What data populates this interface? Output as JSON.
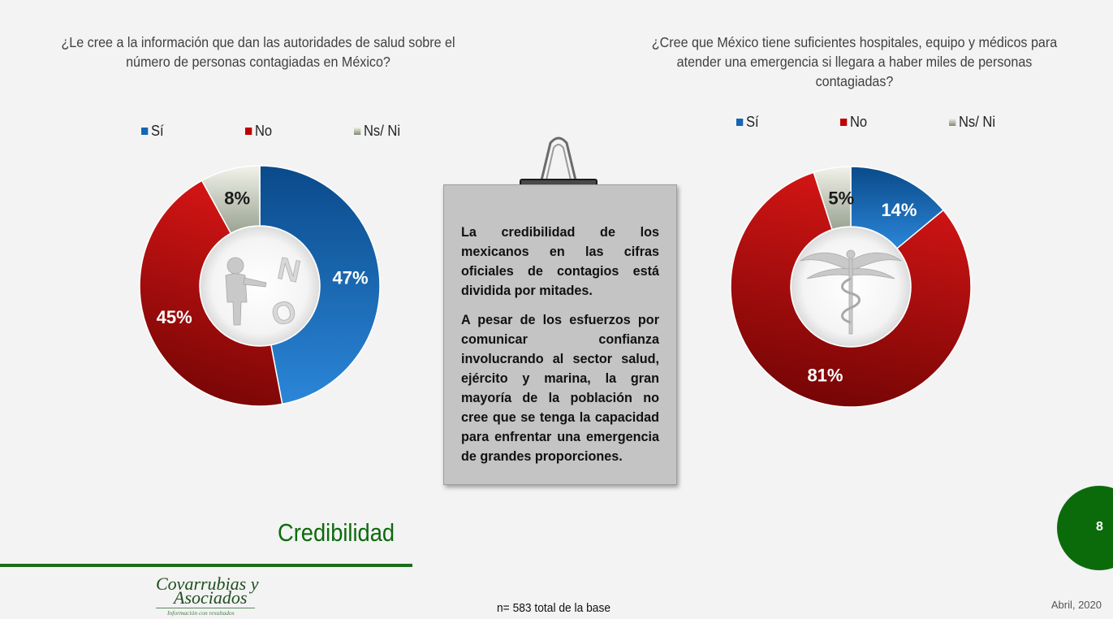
{
  "slide": {
    "section_title": "Credibilidad",
    "base_note": "n= 583 total de la base",
    "date": "Abril, 2020",
    "page_number": "8"
  },
  "logo": {
    "line1": "Covarrubias y",
    "line2": "Asociados",
    "tagline": "Información con resultados"
  },
  "note": {
    "paragraph1": "La credibilidad de los mexicanos en las cifras oficiales de contagios está dividida por mitades.",
    "paragraph2": "A pesar de los esfuerzos por comunicar confianza involucrando al sector salud, ejército y marina, la gran mayoría de la población no cree que se tenga la capacidad para enfrentar una emergencia de grandes proporciones."
  },
  "chart_data": [
    {
      "type": "pie",
      "title": "¿Le cree a la información que dan las autoridades de salud sobre el número de personas contagiadas en México?",
      "categories": [
        "Sí",
        "No",
        "Ns/ Ni"
      ],
      "values": [
        47,
        45,
        8
      ],
      "labels": [
        "47%",
        "45%",
        "8%"
      ],
      "colors": [
        "#1565b5",
        "#b30c0c",
        "#d4d5c6"
      ],
      "legend": "top",
      "donut": true
    },
    {
      "type": "pie",
      "title": "¿Cree que México tiene suficientes hospitales, equipo y médicos para atender una emergencia si llegara a haber miles de personas contagiadas?",
      "categories": [
        "Sí",
        "No",
        "Ns/ Ni"
      ],
      "values": [
        14,
        81,
        5
      ],
      "labels": [
        "14%",
        "81%",
        "5%"
      ],
      "colors": [
        "#1565b5",
        "#b30c0c",
        "#d4d5c6"
      ],
      "legend": "top",
      "donut": true
    }
  ]
}
